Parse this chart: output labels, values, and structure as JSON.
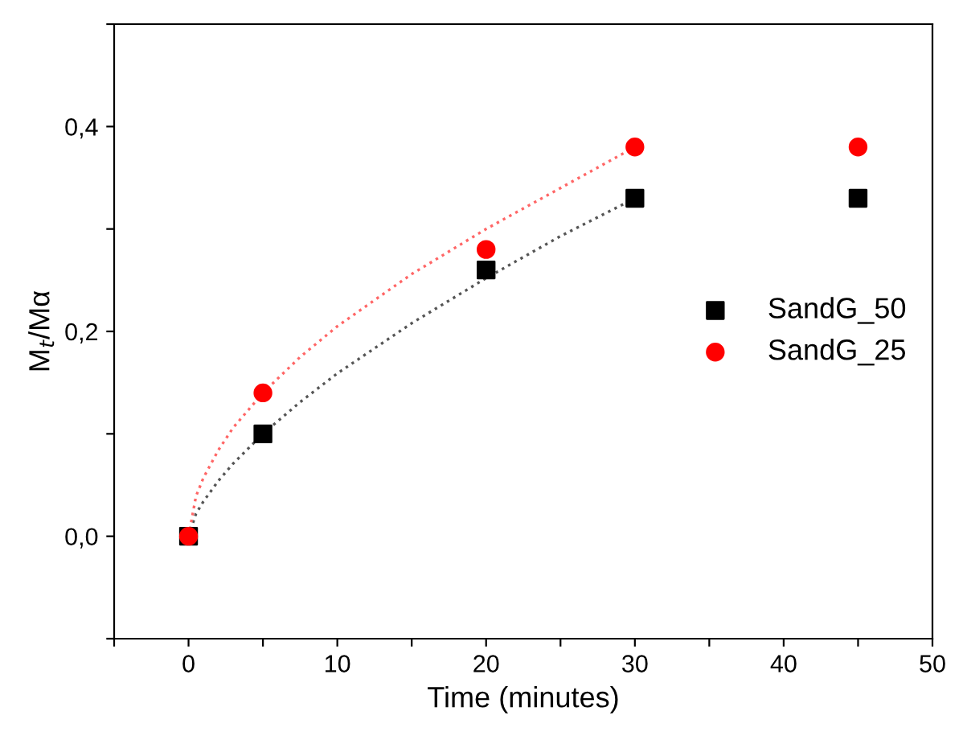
{
  "chart_data": {
    "type": "scatter",
    "xlabel": "Time (minutes)",
    "ylabel": "M$_{t}$/Mα",
    "x": [
      0,
      5,
      20,
      30,
      45
    ],
    "series": [
      {
        "name": "SandG_50",
        "color": "#000000",
        "marker": "square",
        "values": [
          0,
          0.1,
          0.26,
          0.33,
          0.33
        ]
      },
      {
        "name": "SandG_25",
        "color": "#ff0000",
        "marker": "circle",
        "values": [
          0,
          0.14,
          0.28,
          0.38,
          0.38
        ]
      },
      {
        "type": "line",
        "color": "#555555",
        "line_style": "dotted",
        "marker": "none",
        "x": [
          0,
          0.5,
          1,
          2,
          3,
          5,
          7.5,
          10,
          15,
          20,
          25,
          30
        ],
        "values": [
          0,
          0.022,
          0.034,
          0.054,
          0.071,
          0.1,
          0.131,
          0.159,
          0.208,
          0.252,
          0.293,
          0.33
        ]
      },
      {
        "type": "line",
        "color": "#ff6666",
        "line_style": "dotted",
        "marker": "none",
        "x": [
          0,
          0.5,
          1,
          2,
          3,
          5,
          7.5,
          10,
          15,
          20,
          25,
          30
        ],
        "values": [
          0,
          0.039,
          0.057,
          0.084,
          0.106,
          0.14,
          0.175,
          0.205,
          0.256,
          0.3,
          0.34,
          0.38
        ]
      }
    ],
    "xlim": [
      -5,
      50
    ],
    "ylim": [
      -0.1,
      0.5
    ],
    "xticks": [
      {
        "value": -5,
        "label": null
      },
      0,
      {
        "value": 5,
        "label": null
      },
      10,
      {
        "value": 15,
        "label": null
      },
      20,
      {
        "value": 25,
        "label": null
      },
      30,
      {
        "value": 35,
        "label": null
      },
      40,
      {
        "value": 45,
        "label": null
      },
      50
    ],
    "yticks": [
      {
        "value": -0.1,
        "label": null
      },
      {
        "value": 0,
        "label": "0,0"
      },
      {
        "value": 0.1,
        "label": null
      },
      {
        "value": 0.2,
        "label": "0,2"
      },
      {
        "value": 0.3,
        "label": null
      },
      {
        "value": 0.4,
        "label": "0,4"
      },
      {
        "value": 0.5,
        "label": null
      }
    ],
    "grid": false,
    "legend": "center right"
  }
}
